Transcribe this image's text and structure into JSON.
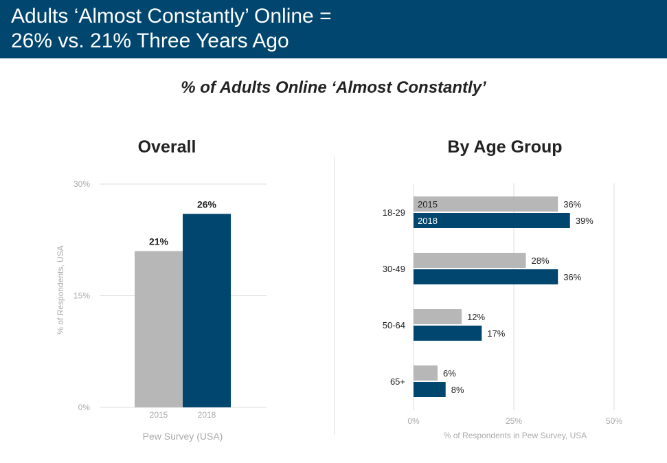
{
  "header": {
    "line1": "Adults ‘Almost Constantly’ Online =",
    "line2": "26% vs. 21% Three Years Ago"
  },
  "subtitle": "% of Adults Online ‘Almost Constantly’",
  "colors": {
    "header_bg": "#00466e",
    "series_2015": "#b7b7b7",
    "series_2018": "#00466e",
    "grid": "#dddddd",
    "axis_text": "#aaaaaa"
  },
  "chart_data": [
    {
      "type": "bar",
      "title": "Overall",
      "categories": [
        "2015",
        "2018"
      ],
      "values": [
        21,
        26
      ],
      "value_labels": [
        "21%",
        "26%"
      ],
      "xlabel": "Pew Survey (USA)",
      "ylabel": "% of Respondents, USA",
      "ylim": [
        0,
        30
      ],
      "yticks": [
        0,
        15,
        30
      ],
      "ytick_labels": [
        "0%",
        "15%",
        "30%"
      ],
      "grid": true
    },
    {
      "type": "bar",
      "orientation": "horizontal",
      "title": "By Age Group",
      "categories": [
        "18-29",
        "30-49",
        "50-64",
        "65+"
      ],
      "series": [
        {
          "name": "2015",
          "values": [
            36,
            28,
            12,
            6
          ],
          "labels": [
            "36%",
            "28%",
            "12%",
            "6%"
          ]
        },
        {
          "name": "2018",
          "values": [
            39,
            36,
            17,
            8
          ],
          "labels": [
            "39%",
            "36%",
            "17%",
            "8%"
          ]
        }
      ],
      "xlabel": "% of Respondents in Pew Survey, USA",
      "xlim": [
        0,
        50
      ],
      "xticks": [
        0,
        25,
        50
      ],
      "xtick_labels": [
        "0%",
        "25%",
        "50%"
      ],
      "grid": true,
      "legend": "inside-bars"
    }
  ]
}
